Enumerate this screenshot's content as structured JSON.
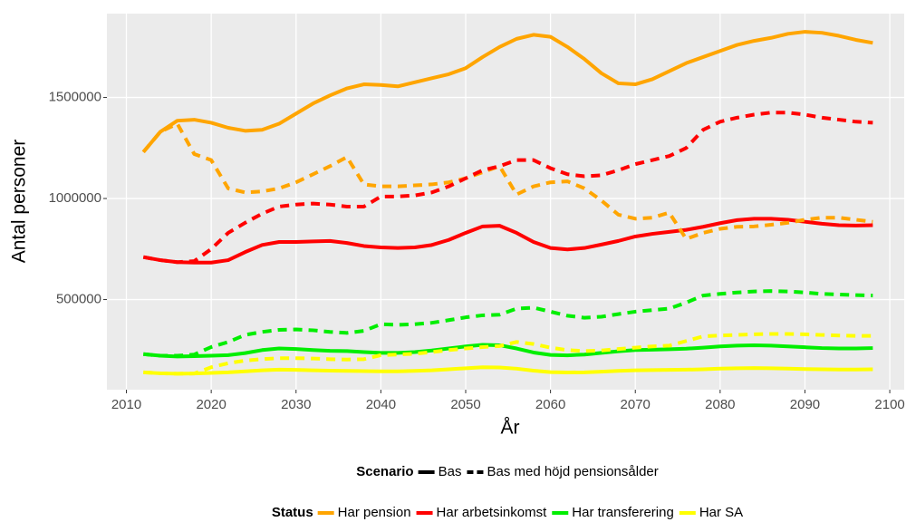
{
  "chart_data": {
    "type": "line",
    "x_label": "År",
    "y_label": "Antal personer",
    "xlim": [
      2007.7,
      2101.7
    ],
    "ylim": [
      54000,
      1915000
    ],
    "xticks": [
      2010,
      2020,
      2030,
      2040,
      2050,
      2060,
      2070,
      2080,
      2090,
      2100
    ],
    "yticks": [
      500000,
      1000000,
      1500000
    ],
    "grid": true,
    "scenario_title": "Scenario",
    "scenarios": [
      {
        "name": "Bas",
        "dashed": false
      },
      {
        "name": "Bas med höjd pensionsålder",
        "dashed": true
      }
    ],
    "status_title": "Status",
    "x": [
      2012,
      2014,
      2016,
      2018,
      2020,
      2022,
      2024,
      2026,
      2028,
      2030,
      2032,
      2034,
      2036,
      2038,
      2040,
      2042,
      2044,
      2046,
      2048,
      2050,
      2052,
      2054,
      2056,
      2058,
      2060,
      2062,
      2064,
      2066,
      2068,
      2070,
      2072,
      2074,
      2076,
      2078,
      2080,
      2082,
      2084,
      2086,
      2088,
      2090,
      2092,
      2094,
      2096,
      2098
    ],
    "series": [
      {
        "name": "Har pension",
        "color": "#FFA500",
        "dashed": false,
        "values": [
          1230000,
          1330000,
          1385000,
          1390000,
          1375000,
          1350000,
          1335000,
          1340000,
          1370000,
          1420000,
          1470000,
          1510000,
          1545000,
          1565000,
          1562000,
          1555000,
          1575000,
          1595000,
          1615000,
          1645000,
          1700000,
          1750000,
          1790000,
          1810000,
          1800000,
          1750000,
          1690000,
          1620000,
          1570000,
          1565000,
          1590000,
          1630000,
          1670000,
          1700000,
          1730000,
          1760000,
          1780000,
          1795000,
          1815000,
          1825000,
          1820000,
          1805000,
          1785000,
          1770000
        ]
      },
      {
        "name": "Har arbetsinkomst",
        "color": "#FF0000",
        "dashed": false,
        "values": [
          710000,
          695000,
          685000,
          683000,
          683000,
          695000,
          735000,
          770000,
          785000,
          785000,
          788000,
          790000,
          780000,
          765000,
          758000,
          755000,
          758000,
          770000,
          795000,
          830000,
          862000,
          865000,
          830000,
          785000,
          755000,
          748000,
          755000,
          772000,
          790000,
          812000,
          825000,
          835000,
          845000,
          860000,
          878000,
          893000,
          900000,
          900000,
          895000,
          885000,
          875000,
          868000,
          866000,
          868000
        ]
      },
      {
        "name": "Har transferering",
        "color": "#00EE00",
        "dashed": false,
        "values": [
          230000,
          222000,
          218000,
          220000,
          222000,
          225000,
          235000,
          250000,
          258000,
          255000,
          250000,
          246000,
          245000,
          240000,
          236000,
          236000,
          240000,
          248000,
          258000,
          268000,
          276000,
          274000,
          258000,
          238000,
          226000,
          224000,
          228000,
          236000,
          244000,
          250000,
          252000,
          254000,
          257000,
          262000,
          268000,
          272000,
          274000,
          272000,
          268000,
          264000,
          260000,
          258000,
          258000,
          260000
        ]
      },
      {
        "name": "Har SA",
        "color": "#FFFF00",
        "dashed": false,
        "values": [
          140000,
          135000,
          133000,
          134000,
          137000,
          140000,
          145000,
          150000,
          153000,
          152000,
          150000,
          148000,
          147000,
          146000,
          145000,
          145000,
          147000,
          150000,
          155000,
          160000,
          165000,
          164000,
          158000,
          148000,
          141000,
          139000,
          140000,
          143000,
          147000,
          150000,
          151000,
          152000,
          153000,
          155000,
          158000,
          160000,
          161000,
          160000,
          158000,
          156000,
          155000,
          154000,
          154000,
          155000
        ]
      },
      {
        "name": "Har pension",
        "color": "#FFA500",
        "dashed": true,
        "values": [
          1230000,
          1330000,
          1370000,
          1220000,
          1190000,
          1050000,
          1030000,
          1035000,
          1050000,
          1080000,
          1120000,
          1160000,
          1205000,
          1070000,
          1060000,
          1060000,
          1065000,
          1070000,
          1080000,
          1100000,
          1130000,
          1160000,
          1020000,
          1060000,
          1080000,
          1085000,
          1050000,
          990000,
          920000,
          900000,
          905000,
          930000,
          800000,
          830000,
          850000,
          860000,
          862000,
          870000,
          880000,
          895000,
          905000,
          905000,
          895000,
          885000
        ]
      },
      {
        "name": "Har arbetsinkomst",
        "color": "#FF0000",
        "dashed": true,
        "values": [
          710000,
          695000,
          685000,
          690000,
          750000,
          830000,
          880000,
          925000,
          960000,
          970000,
          975000,
          970000,
          960000,
          960000,
          1010000,
          1010000,
          1015000,
          1030000,
          1060000,
          1100000,
          1140000,
          1160000,
          1190000,
          1190000,
          1150000,
          1120000,
          1110000,
          1115000,
          1140000,
          1170000,
          1190000,
          1210000,
          1250000,
          1340000,
          1380000,
          1400000,
          1415000,
          1425000,
          1425000,
          1415000,
          1400000,
          1390000,
          1380000,
          1375000
        ]
      },
      {
        "name": "Har transferering",
        "color": "#00EE00",
        "dashed": true,
        "values": [
          230000,
          222000,
          222000,
          228000,
          265000,
          290000,
          325000,
          340000,
          350000,
          352000,
          348000,
          340000,
          335000,
          345000,
          378000,
          375000,
          378000,
          385000,
          398000,
          412000,
          422000,
          425000,
          455000,
          460000,
          440000,
          420000,
          410000,
          415000,
          428000,
          440000,
          448000,
          455000,
          485000,
          520000,
          528000,
          535000,
          540000,
          542000,
          540000,
          535000,
          528000,
          525000,
          522000,
          520000
        ]
      },
      {
        "name": "Har SA",
        "color": "#FFFF00",
        "dashed": true,
        "values": [
          140000,
          135000,
          133000,
          134000,
          165000,
          185000,
          198000,
          205000,
          210000,
          210000,
          208000,
          205000,
          203000,
          205000,
          225000,
          228000,
          232000,
          240000,
          250000,
          258000,
          265000,
          270000,
          290000,
          280000,
          262000,
          250000,
          245000,
          248000,
          255000,
          262000,
          268000,
          272000,
          295000,
          318000,
          322000,
          325000,
          328000,
          330000,
          330000,
          328000,
          325000,
          322000,
          320000,
          320000
        ]
      }
    ]
  }
}
